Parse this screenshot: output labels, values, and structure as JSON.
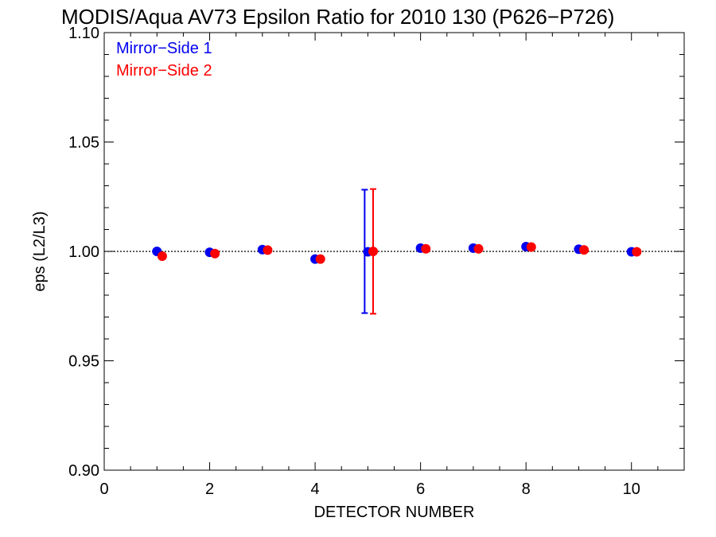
{
  "chart_data": {
    "type": "scatter",
    "title": "MODIS/Aqua AV73 Epsilon Ratio for 2010 130 (P626−P726)",
    "xlabel": "DETECTOR NUMBER",
    "ylabel": "eps (L2/L3)",
    "xlim": [
      0,
      11
    ],
    "ylim": [
      0.9,
      1.1
    ],
    "x_ticks": [
      0,
      2,
      4,
      6,
      8,
      10
    ],
    "x_tick_labels": [
      "0",
      "2",
      "4",
      "6",
      "8",
      "10"
    ],
    "y_ticks": [
      0.9,
      0.95,
      1.0,
      1.05,
      1.1
    ],
    "y_tick_labels": [
      "0.90",
      "0.95",
      "1.00",
      "1.05",
      "1.10"
    ],
    "reference_line": 1.0,
    "legend_position": "top-left",
    "series": [
      {
        "name": "Mirror−Side 1",
        "color": "#0000ee",
        "x": [
          1,
          2,
          3,
          4,
          5,
          6,
          7,
          8,
          9,
          10
        ],
        "y": [
          1.0,
          0.9996,
          1.0008,
          0.9965,
          0.9998,
          1.0015,
          1.0015,
          1.0022,
          1.001,
          0.9998
        ],
        "error_bars": [
          {
            "x": 5,
            "low": 0.9718,
            "high": 1.0282
          }
        ]
      },
      {
        "name": "Mirror−Side 2",
        "color": "#ff0000",
        "x": [
          1.1,
          2.1,
          3.1,
          4.1,
          5.1,
          6.1,
          7.1,
          8.1,
          9.1,
          10.1
        ],
        "y": [
          0.9978,
          0.999,
          1.0006,
          0.9965,
          1.0,
          1.0012,
          1.0012,
          1.002,
          1.0007,
          0.9998
        ],
        "error_bars": [
          {
            "x": 5.1,
            "low": 0.9715,
            "high": 1.0285
          }
        ]
      }
    ]
  }
}
